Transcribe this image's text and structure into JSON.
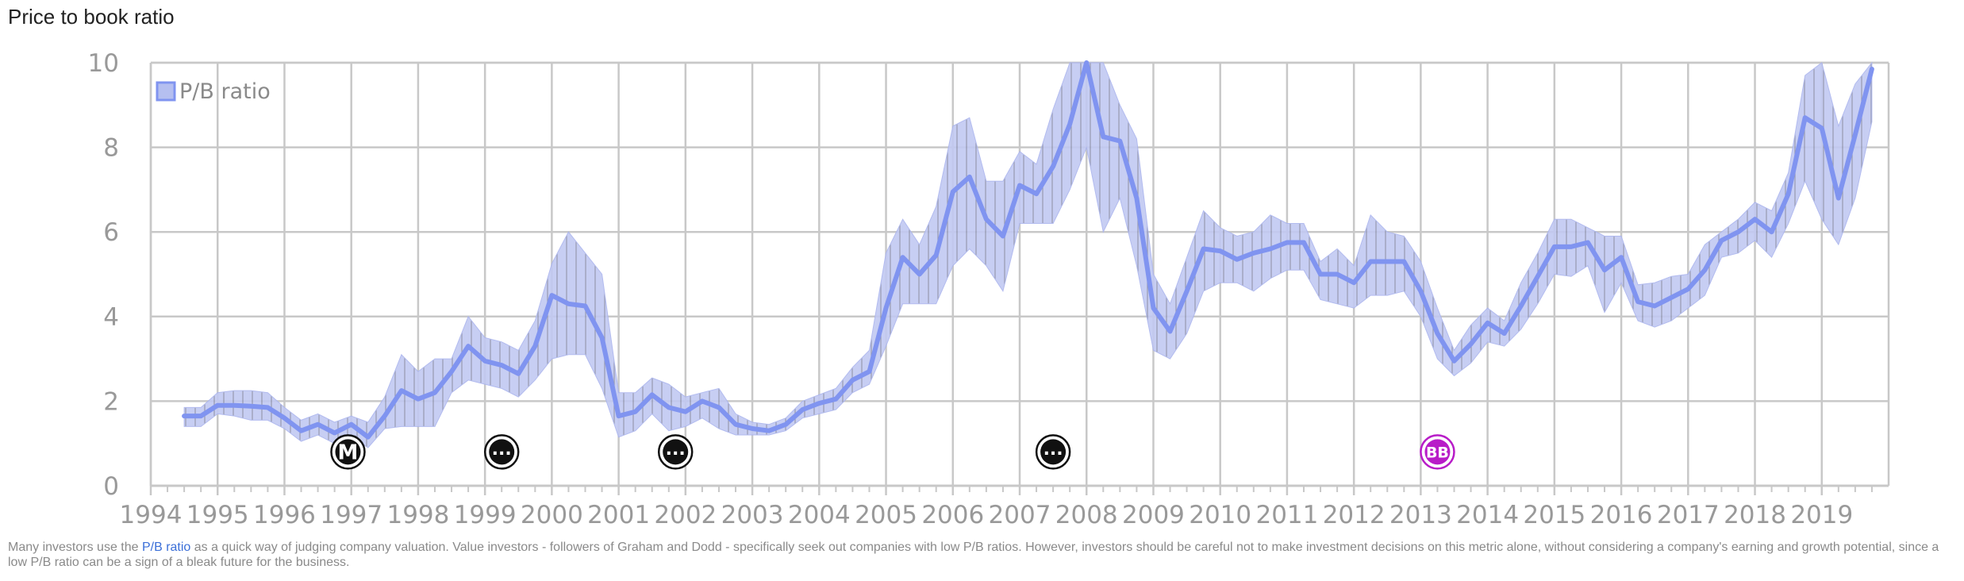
{
  "title": "Price to book ratio",
  "footer": {
    "prefix": "Many investors use the ",
    "link": "P/B ratio",
    "suffix": " as a quick way of judging company valuation. Value investors - followers of Graham and Dodd - specifically seek out companies with low P/B ratios. However, investors should be careful not to make investment decisions on this metric alone, without considering a company's earning and growth potential, since a low P/B ratio can be a sign of a bleak future for the business."
  },
  "colors": {
    "line": "#8094f0",
    "band_fill": "#c2c9f2",
    "band_hatch": "#8a8fa6",
    "grid": "#c8c8c8",
    "marker_black": "#111111",
    "marker_magenta": "#b81cc8"
  },
  "chart_data": {
    "type": "line",
    "xlabel": "",
    "ylabel": "",
    "ylim": [
      0,
      10
    ],
    "yticks": [
      "0",
      "2",
      "4",
      "6",
      "8",
      "10"
    ],
    "xticks": [
      "1994",
      "1995",
      "1996",
      "1997",
      "1998",
      "1999",
      "2000",
      "2001",
      "2002",
      "2003",
      "2004",
      "2005",
      "2006",
      "2007",
      "2008",
      "2009",
      "2010",
      "2011",
      "2012",
      "2013",
      "2014",
      "2015",
      "2016",
      "2017",
      "2018",
      "2019"
    ],
    "grid": true,
    "legend": {
      "position": "top-left",
      "entries": [
        "P/B ratio"
      ]
    },
    "series": [
      {
        "name": "P/B ratio",
        "x": [
          1994.5,
          1994.75,
          1995.0,
          1995.25,
          1995.5,
          1995.75,
          1996.0,
          1996.25,
          1996.5,
          1996.75,
          1997.0,
          1997.25,
          1997.5,
          1997.75,
          1998.0,
          1998.25,
          1998.5,
          1998.75,
          1999.0,
          1999.25,
          1999.5,
          1999.75,
          2000.0,
          2000.25,
          2000.5,
          2000.75,
          2001.0,
          2001.25,
          2001.5,
          2001.75,
          2002.0,
          2002.25,
          2002.5,
          2002.75,
          2003.0,
          2003.25,
          2003.5,
          2003.75,
          2004.0,
          2004.25,
          2004.5,
          2004.75,
          2005.0,
          2005.25,
          2005.5,
          2005.75,
          2006.0,
          2006.25,
          2006.5,
          2006.75,
          2007.0,
          2007.25,
          2007.5,
          2007.75,
          2008.0,
          2008.25,
          2008.5,
          2008.75,
          2009.0,
          2009.25,
          2009.5,
          2009.75,
          2010.0,
          2010.25,
          2010.5,
          2010.75,
          2011.0,
          2011.25,
          2011.5,
          2011.75,
          2012.0,
          2012.25,
          2012.5,
          2012.75,
          2013.0,
          2013.25,
          2013.5,
          2013.75,
          2014.0,
          2014.25,
          2014.5,
          2014.75,
          2015.0,
          2015.25,
          2015.5,
          2015.75,
          2016.0,
          2016.25,
          2016.5,
          2016.75,
          2017.0,
          2017.25,
          2017.5,
          2017.75,
          2018.0,
          2018.25,
          2018.5,
          2018.75,
          2019.0,
          2019.25,
          2019.5,
          2019.75
        ],
        "values": [
          1.65,
          1.65,
          1.9,
          1.9,
          1.88,
          1.85,
          1.6,
          1.3,
          1.45,
          1.25,
          1.45,
          1.15,
          1.65,
          2.25,
          2.05,
          2.2,
          2.7,
          3.3,
          2.95,
          2.85,
          2.65,
          3.3,
          4.5,
          4.3,
          4.25,
          3.5,
          1.65,
          1.75,
          2.15,
          1.85,
          1.75,
          2.0,
          1.85,
          1.45,
          1.35,
          1.3,
          1.45,
          1.8,
          1.95,
          2.05,
          2.5,
          2.7,
          4.2,
          5.4,
          5.0,
          5.45,
          6.95,
          7.3,
          6.3,
          5.9,
          7.1,
          6.9,
          7.55,
          8.55,
          10.15,
          8.25,
          8.15,
          6.8,
          4.2,
          3.65,
          4.6,
          5.6,
          5.55,
          5.35,
          5.5,
          5.6,
          5.75,
          5.75,
          5.0,
          5.0,
          4.8,
          5.3,
          5.3,
          5.3,
          4.6,
          3.6,
          2.95,
          3.35,
          3.85,
          3.6,
          4.25,
          4.95,
          5.65,
          5.65,
          5.75,
          5.1,
          5.4,
          4.35,
          4.25,
          4.45,
          4.65,
          5.1,
          5.8,
          6.0,
          6.3,
          6.0,
          6.9,
          8.7,
          8.45,
          6.8,
          8.3,
          9.85
        ],
        "low": [
          1.4,
          1.4,
          1.7,
          1.65,
          1.55,
          1.55,
          1.35,
          1.05,
          1.2,
          1.0,
          1.15,
          0.9,
          1.35,
          1.4,
          1.4,
          1.4,
          2.2,
          2.5,
          2.4,
          2.3,
          2.1,
          2.5,
          3.0,
          3.1,
          3.1,
          2.3,
          1.15,
          1.3,
          1.7,
          1.3,
          1.4,
          1.6,
          1.35,
          1.2,
          1.2,
          1.2,
          1.3,
          1.6,
          1.7,
          1.8,
          2.2,
          2.4,
          3.3,
          4.3,
          4.3,
          4.3,
          5.2,
          5.6,
          5.2,
          4.6,
          6.2,
          6.2,
          6.2,
          7.0,
          8.0,
          6.0,
          6.8,
          5.2,
          3.2,
          3.0,
          3.6,
          4.6,
          4.8,
          4.8,
          4.6,
          4.9,
          5.1,
          5.1,
          4.4,
          4.3,
          4.2,
          4.5,
          4.5,
          4.6,
          4.0,
          3.0,
          2.6,
          2.9,
          3.4,
          3.3,
          3.7,
          4.3,
          5.0,
          4.95,
          5.2,
          4.1,
          4.8,
          3.9,
          3.75,
          3.9,
          4.2,
          4.5,
          5.4,
          5.5,
          5.8,
          5.4,
          6.2,
          7.2,
          6.3,
          5.7,
          6.8,
          8.6
        ],
        "high": [
          1.85,
          1.85,
          2.2,
          2.25,
          2.25,
          2.2,
          1.85,
          1.55,
          1.7,
          1.5,
          1.65,
          1.5,
          2.1,
          3.1,
          2.7,
          3.0,
          3.0,
          4.0,
          3.5,
          3.4,
          3.2,
          3.9,
          5.25,
          6.0,
          5.5,
          5.0,
          2.2,
          2.2,
          2.55,
          2.4,
          2.1,
          2.2,
          2.3,
          1.7,
          1.5,
          1.45,
          1.6,
          2.0,
          2.15,
          2.3,
          2.8,
          3.2,
          5.5,
          6.3,
          5.7,
          6.6,
          8.5,
          8.7,
          7.2,
          7.2,
          7.9,
          7.6,
          8.9,
          10.2,
          10.2,
          10.2,
          9.0,
          8.2,
          5.0,
          4.3,
          5.4,
          6.5,
          6.1,
          5.9,
          6.0,
          6.4,
          6.2,
          6.2,
          5.3,
          5.6,
          5.2,
          6.4,
          6.0,
          5.9,
          5.3,
          4.2,
          3.2,
          3.8,
          4.2,
          3.9,
          4.8,
          5.5,
          6.3,
          6.3,
          6.1,
          5.9,
          5.9,
          4.75,
          4.8,
          4.95,
          5.0,
          5.7,
          6.0,
          6.3,
          6.7,
          6.5,
          7.4,
          9.7,
          10.2,
          8.5,
          9.5,
          10.2
        ]
      }
    ],
    "annotations": [
      {
        "x": 1996.95,
        "y": 0.8,
        "label": "M",
        "style": "black"
      },
      {
        "x": 1999.25,
        "y": 0.8,
        "label": "···",
        "style": "black"
      },
      {
        "x": 2001.85,
        "y": 0.8,
        "label": "···",
        "style": "black"
      },
      {
        "x": 2007.5,
        "y": 0.8,
        "label": "···",
        "style": "black"
      },
      {
        "x": 2013.25,
        "y": 0.8,
        "label": "BB",
        "style": "magenta"
      }
    ]
  }
}
